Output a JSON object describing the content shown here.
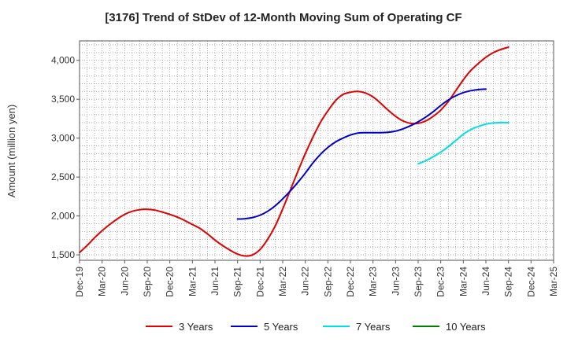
{
  "chart_data": {
    "type": "line",
    "title": "[3176]  Trend of StDev of 12-Month Moving Sum of Operating CF",
    "xlabel": "",
    "ylabel": "Amount (million yen)",
    "ylim": [
      1430,
      4250
    ],
    "yticks": [
      1500,
      2000,
      2500,
      3000,
      3500,
      4000
    ],
    "ytick_labels": [
      "1,500",
      "2,000",
      "2,500",
      "3,000",
      "3,500",
      "4,000"
    ],
    "xlim": [
      "2019-12",
      "2025-03"
    ],
    "xtick_labels": [
      "Dec-19",
      "Mar-20",
      "Jun-20",
      "Sep-20",
      "Dec-20",
      "Mar-21",
      "Jun-21",
      "Sep-21",
      "Dec-21",
      "Mar-22",
      "Jun-22",
      "Sep-22",
      "Dec-22",
      "Mar-23",
      "Jun-23",
      "Sep-23",
      "Dec-23",
      "Mar-24",
      "Jun-24",
      "Sep-24",
      "Dec-24",
      "Mar-25"
    ],
    "grid": true,
    "legend_position": "bottom",
    "series": [
      {
        "name": "3 Years",
        "color": "#e00000",
        "points": [
          [
            "2019-12",
            1530
          ],
          [
            "2020-01",
            1620
          ],
          [
            "2020-02",
            1720
          ],
          [
            "2020-03",
            1810
          ],
          [
            "2020-04",
            1890
          ],
          [
            "2020-05",
            1960
          ],
          [
            "2020-06",
            2020
          ],
          [
            "2020-07",
            2060
          ],
          [
            "2020-08",
            2080
          ],
          [
            "2020-09",
            2085
          ],
          [
            "2020-10",
            2075
          ],
          [
            "2020-11",
            2050
          ],
          [
            "2020-12",
            2020
          ],
          [
            "2021-01",
            1985
          ],
          [
            "2021-02",
            1940
          ],
          [
            "2021-03",
            1890
          ],
          [
            "2021-04",
            1840
          ],
          [
            "2021-05",
            1770
          ],
          [
            "2021-06",
            1690
          ],
          [
            "2021-07",
            1620
          ],
          [
            "2021-08",
            1560
          ],
          [
            "2021-09",
            1510
          ],
          [
            "2021-10",
            1485
          ],
          [
            "2021-11",
            1500
          ],
          [
            "2021-12",
            1570
          ],
          [
            "2022-01",
            1700
          ],
          [
            "2022-02",
            1870
          ],
          [
            "2022-03",
            2090
          ],
          [
            "2022-04",
            2330
          ],
          [
            "2022-05",
            2570
          ],
          [
            "2022-06",
            2800
          ],
          [
            "2022-07",
            3010
          ],
          [
            "2022-08",
            3200
          ],
          [
            "2022-09",
            3350
          ],
          [
            "2022-10",
            3480
          ],
          [
            "2022-11",
            3560
          ],
          [
            "2022-12",
            3590
          ],
          [
            "2023-01",
            3600
          ],
          [
            "2023-02",
            3580
          ],
          [
            "2023-03",
            3530
          ],
          [
            "2023-04",
            3450
          ],
          [
            "2023-05",
            3360
          ],
          [
            "2023-06",
            3280
          ],
          [
            "2023-07",
            3220
          ],
          [
            "2023-08",
            3190
          ],
          [
            "2023-09",
            3190
          ],
          [
            "2023-10",
            3220
          ],
          [
            "2023-11",
            3280
          ],
          [
            "2023-12",
            3360
          ],
          [
            "2024-01",
            3470
          ],
          [
            "2024-02",
            3610
          ],
          [
            "2024-03",
            3750
          ],
          [
            "2024-04",
            3870
          ],
          [
            "2024-05",
            3960
          ],
          [
            "2024-06",
            4040
          ],
          [
            "2024-07",
            4100
          ],
          [
            "2024-08",
            4140
          ],
          [
            "2024-09",
            4170
          ]
        ]
      },
      {
        "name": "5 Years",
        "color": "#0000cc",
        "points": [
          [
            "2021-09",
            1960
          ],
          [
            "2021-10",
            1965
          ],
          [
            "2021-11",
            1980
          ],
          [
            "2021-12",
            2010
          ],
          [
            "2022-01",
            2060
          ],
          [
            "2022-02",
            2130
          ],
          [
            "2022-03",
            2220
          ],
          [
            "2022-04",
            2320
          ],
          [
            "2022-05",
            2430
          ],
          [
            "2022-06",
            2550
          ],
          [
            "2022-07",
            2680
          ],
          [
            "2022-08",
            2790
          ],
          [
            "2022-09",
            2880
          ],
          [
            "2022-10",
            2950
          ],
          [
            "2022-11",
            3000
          ],
          [
            "2022-12",
            3040
          ],
          [
            "2023-01",
            3065
          ],
          [
            "2023-02",
            3070
          ],
          [
            "2023-03",
            3070
          ],
          [
            "2023-04",
            3070
          ],
          [
            "2023-05",
            3075
          ],
          [
            "2023-06",
            3090
          ],
          [
            "2023-07",
            3120
          ],
          [
            "2023-08",
            3160
          ],
          [
            "2023-09",
            3210
          ],
          [
            "2023-10",
            3270
          ],
          [
            "2023-11",
            3340
          ],
          [
            "2023-12",
            3420
          ],
          [
            "2024-01",
            3490
          ],
          [
            "2024-02",
            3545
          ],
          [
            "2024-03",
            3585
          ],
          [
            "2024-04",
            3610
          ],
          [
            "2024-05",
            3625
          ],
          [
            "2024-06",
            3630
          ]
        ]
      },
      {
        "name": "7 Years",
        "color": "#00e0e0",
        "points": [
          [
            "2023-09",
            2670
          ],
          [
            "2023-10",
            2710
          ],
          [
            "2023-11",
            2760
          ],
          [
            "2023-12",
            2820
          ],
          [
            "2024-01",
            2890
          ],
          [
            "2024-02",
            2970
          ],
          [
            "2024-03",
            3050
          ],
          [
            "2024-04",
            3110
          ],
          [
            "2024-05",
            3150
          ],
          [
            "2024-06",
            3180
          ],
          [
            "2024-07",
            3195
          ],
          [
            "2024-08",
            3200
          ],
          [
            "2024-09",
            3200
          ]
        ]
      },
      {
        "name": "10 Years",
        "color": "#008000",
        "points": []
      }
    ]
  }
}
